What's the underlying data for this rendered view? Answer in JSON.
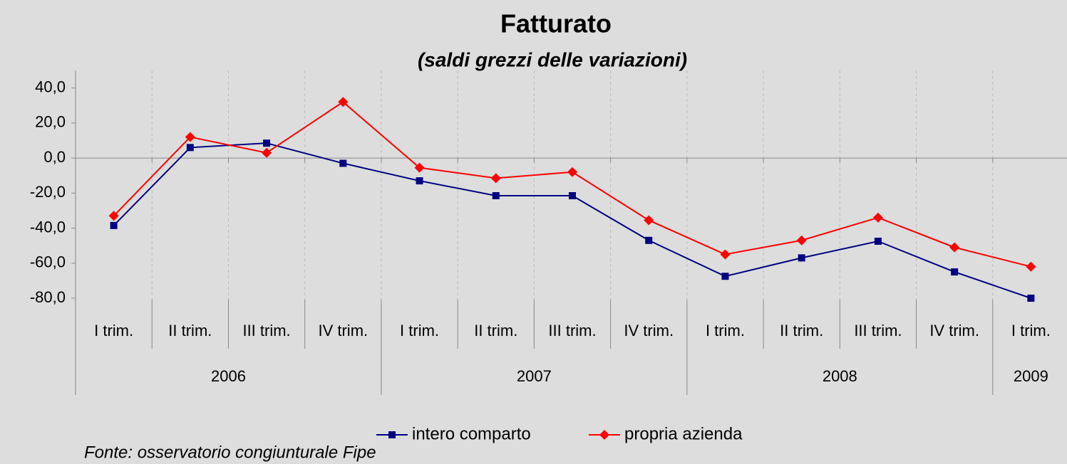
{
  "chart_data": {
    "type": "line",
    "title": "Fatturato",
    "subtitle": "(saldi grezzi delle variazioni)",
    "source": "Fonte: osservatorio congiunturale Fipe",
    "categories": [
      "I trim.",
      "II trim.",
      "III trim.",
      "IV  trim.",
      "I trim.",
      "II trim.",
      "III trim.",
      "IV  trim.",
      "I trim.",
      "II trim.",
      "III trim.",
      "IV  trim.",
      "I trim."
    ],
    "x_groups": [
      {
        "label": "2006",
        "count": 4
      },
      {
        "label": "2007",
        "count": 4
      },
      {
        "label": "2008",
        "count": 4
      },
      {
        "label": "2009",
        "count": 1
      }
    ],
    "series": [
      {
        "name": "intero comparto",
        "color": "#000080",
        "marker": "square",
        "values": [
          -38.5,
          6,
          8.5,
          -3,
          -13,
          -21.5,
          -21.5,
          -47,
          -67.5,
          -57,
          -47.5,
          -65,
          -80
        ]
      },
      {
        "name": "propria azienda",
        "color": "#ff0000",
        "marker": "diamond",
        "values": [
          -33,
          12,
          3,
          32,
          -5.5,
          -11.5,
          -8,
          -35.5,
          -55,
          -47,
          -34,
          -51,
          -62
        ]
      }
    ],
    "ylim": [
      -80,
      50
    ],
    "yticks": [
      {
        "value": -80,
        "label": "-80,0"
      },
      {
        "value": -60,
        "label": "-60,0"
      },
      {
        "value": -40,
        "label": "-40,0"
      },
      {
        "value": -20,
        "label": "-20,0"
      },
      {
        "value": 0,
        "label": "0,0"
      },
      {
        "value": 20,
        "label": "20,0"
      },
      {
        "value": 40,
        "label": "40,0"
      }
    ],
    "grid": true,
    "legend": "bottom"
  }
}
